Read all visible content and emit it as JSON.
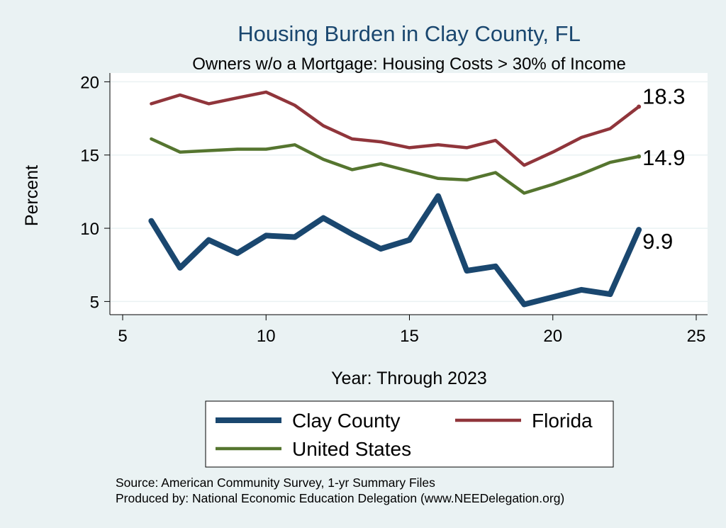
{
  "chart_data": {
    "type": "line",
    "title": "Housing Burden in Clay County, FL",
    "subtitle": "Owners w/o a Mortgage: Housing Costs > 30% of Income",
    "xlabel": "Year: Through 2023",
    "ylabel": "Percent",
    "xlim": [
      5,
      25
    ],
    "ylim": [
      4.1,
      20.6
    ],
    "xticks": [
      "5",
      "10",
      "15",
      "20",
      "25"
    ],
    "yticks": [
      "5",
      "10",
      "15",
      "20"
    ],
    "grid": true,
    "legend_position": "bottom",
    "x": [
      6,
      7,
      8,
      9,
      10,
      11,
      12,
      13,
      14,
      15,
      16,
      17,
      18,
      19,
      20,
      21,
      22,
      23
    ],
    "series": [
      {
        "name": "Clay County",
        "color": "#1a476f",
        "values": [
          10.5,
          7.3,
          9.2,
          8.3,
          9.5,
          9.4,
          10.7,
          9.6,
          8.6,
          9.2,
          12.2,
          7.1,
          7.4,
          4.8,
          5.3,
          5.8,
          5.5,
          9.9
        ],
        "end_label": "9.9"
      },
      {
        "name": "Florida",
        "color": "#90353b",
        "values": [
          18.5,
          19.1,
          18.5,
          18.9,
          19.3,
          18.4,
          17.0,
          16.1,
          15.9,
          15.5,
          15.7,
          15.5,
          16.0,
          14.3,
          15.2,
          16.2,
          16.8,
          18.3
        ],
        "end_label": "18.3"
      },
      {
        "name": "United States",
        "color": "#55752f",
        "values": [
          16.1,
          15.2,
          15.3,
          15.4,
          15.4,
          15.7,
          14.7,
          14.0,
          14.4,
          13.9,
          13.4,
          13.3,
          13.8,
          12.4,
          13.0,
          13.7,
          14.5,
          14.9
        ],
        "end_label": "14.9"
      }
    ],
    "notes": [
      "Source: American Community Survey, 1-yr Summary Files",
      "Produced by: National Economic Education Delegation (www.NEEDelegation.org)"
    ]
  }
}
